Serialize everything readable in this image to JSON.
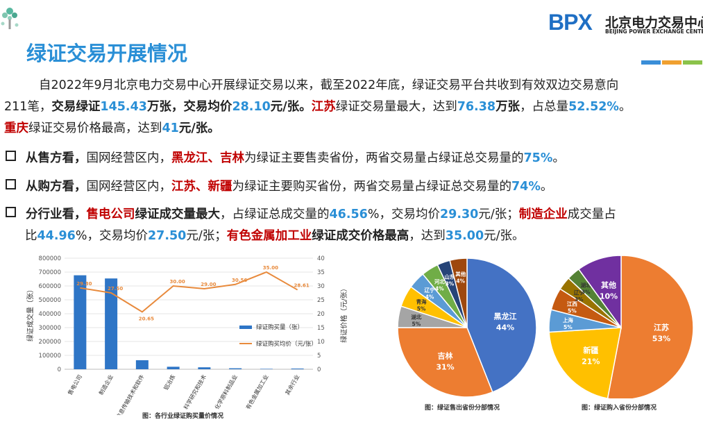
{
  "page": {
    "title": "绿证交易开展情况",
    "logo": {
      "mark": "BPX",
      "cn": "北京电力交易中心",
      "en": "BEIJING POWER EXCHANGE CENTER"
    },
    "accent_colors": [
      "#3a8ed8",
      "#f0a030",
      "#8bc34a"
    ]
  },
  "summary": {
    "l1": "自2022年9月北京电力交易中心开展绿证交易以来，截至2022年底，绿证交易平台共收到有效双边交易意向",
    "l2a": "211笔，",
    "l2b": "交易绿证",
    "l2c": "145.43",
    "l2d": "万张，",
    "l2e": "交易均价",
    "l2f": "28.10",
    "l2g": "元/张。",
    "l2h": "江苏",
    "l2i": "绿证交易量最大，达到",
    "l2j": "76.38",
    "l2k": "万张",
    "l2l": "，占总量",
    "l2m": "52.52%",
    "l2n": "。",
    "l3a": "重庆",
    "l3b": "绿证交易价格最高，达到",
    "l3c": "41",
    "l3d": "元/张。"
  },
  "bullets": {
    "b1a": "从售方看，",
    "b1b": "国网经营区内，",
    "b1c": "黑龙江、吉林",
    "b1d": "为绿证主要售卖省份，两省交易量占绿证总交易量的",
    "b1e": "75%",
    "b1f": "。",
    "b2a": "从购方看，",
    "b2b": "国网经营区内，",
    "b2c": "江苏、新疆",
    "b2d": "为绿证主要购买省份，两省交易量占绿证总交易量的",
    "b2e": "74%",
    "b2f": "。",
    "b3a": "分行业看，",
    "b3b": "售电公司",
    "b3c": "绿证成交量最大",
    "b3d": "，占绿证总成交量的",
    "b3e": "46.56",
    "b3f": "%，交易均价",
    "b3g": "29.30",
    "b3h": "元/张；",
    "b3i": "制造企业",
    "b3j": "成交量占",
    "b3k": "比",
    "b3l": "44.96",
    "b3m": "%，交易均价",
    "b3n": "27.50",
    "b3o": "元/张；",
    "b3p": "有色金属加工业",
    "b3q": "绿证成交价格最高",
    "b3r": "，达到",
    "b3s": "35.00",
    "b3t": "元/张。"
  },
  "chart_data": [
    {
      "type": "bar",
      "title": "图：各行业绿证购买量价情况",
      "categories": [
        "售电公司",
        "制造企业",
        "信息传输技术和软件",
        "铝冶炼",
        "科学研究和技术",
        "化学原料制品业",
        "有色金属加工业",
        "其余行业"
      ],
      "series": [
        {
          "name": "绿证购买量（张）",
          "axis": "left",
          "type": "bar",
          "color": "#2e75c6",
          "values": [
            677000,
            654000,
            65000,
            18000,
            14000,
            7000,
            3000,
            5000
          ]
        },
        {
          "name": "绿证购买均价（元/张）",
          "axis": "right",
          "type": "line",
          "color": "#e88a3c",
          "values": [
            29.3,
            27.5,
            20.65,
            30.0,
            29.0,
            30.56,
            35.0,
            28.61
          ]
        }
      ],
      "price_labels": [
        "29.30",
        "27.50",
        "20.65",
        "30.00",
        "29.00",
        "30.56",
        "35.00",
        "28.61"
      ],
      "ylabel": "绿证成交量（张）",
      "y2label": "绿证价格（元/张）",
      "ylim": [
        0,
        800000
      ],
      "y2lim": [
        0,
        40
      ],
      "yticks": [
        "0",
        "100000",
        "200000",
        "300000",
        "400000",
        "500000",
        "600000",
        "700000",
        "800000"
      ],
      "y2ticks": [
        "0",
        "5",
        "10",
        "15",
        "20",
        "25",
        "30",
        "35",
        "40"
      ],
      "legend": [
        "绿证购买量（张）",
        "绿证购买均价（元/张）"
      ]
    },
    {
      "type": "pie",
      "title": "图：绿证售出省份分部情况",
      "labels": [
        "黑龙江",
        "吉林",
        "湖北",
        "青海",
        "辽宁",
        "河北",
        "山东",
        "其他"
      ],
      "values": [
        44,
        31,
        5,
        5,
        4,
        4,
        3,
        4
      ],
      "display": [
        "44%",
        "31%",
        "5%",
        "5%",
        "4%",
        "4%",
        "3%",
        "4%"
      ],
      "colors": [
        "#4472c4",
        "#ed7d31",
        "#a5a5a5",
        "#ffc000",
        "#5b9bd5",
        "#70ad47",
        "#264478",
        "#9e480e"
      ]
    },
    {
      "type": "pie",
      "title": "图：绿证购入省份分部情况",
      "labels": [
        "江苏",
        "新疆",
        "上海",
        "江西",
        "辽宁",
        "湖北",
        "其他"
      ],
      "values": [
        53,
        21,
        5,
        5,
        3,
        3,
        10
      ],
      "display": [
        "53%",
        "21%",
        "5%",
        "5%",
        "3%",
        "3%",
        "10%"
      ],
      "colors": [
        "#ed7d31",
        "#ffc000",
        "#5b9bd5",
        "#c55a11",
        "#997300",
        "#548235",
        "#7030a0"
      ]
    }
  ]
}
